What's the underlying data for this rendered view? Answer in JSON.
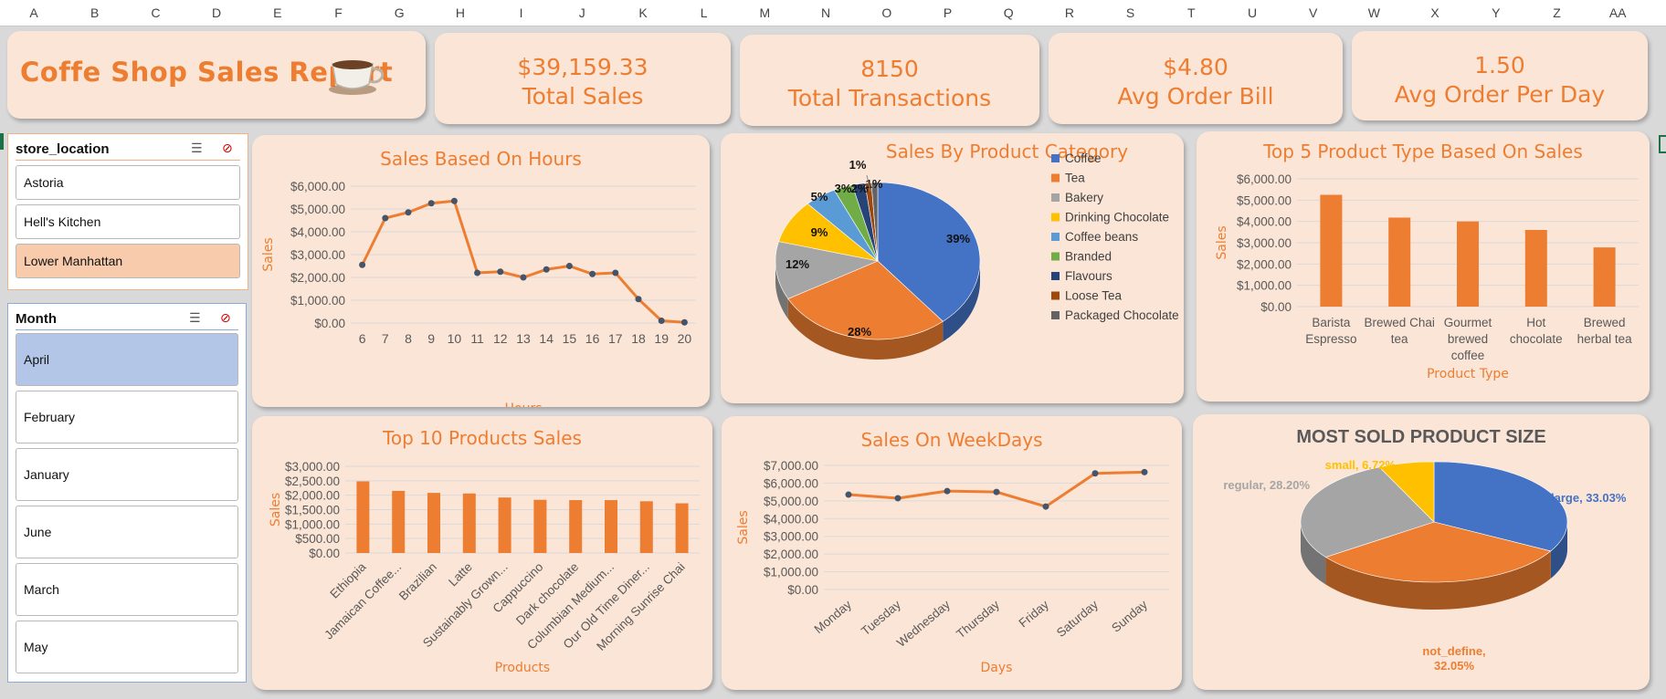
{
  "columns": [
    "A",
    "B",
    "C",
    "D",
    "E",
    "F",
    "G",
    "H",
    "I",
    "J",
    "K",
    "L",
    "M",
    "N",
    "O",
    "P",
    "Q",
    "R",
    "S",
    "T",
    "U",
    "V",
    "W",
    "X",
    "Y",
    "Z",
    "AA"
  ],
  "header": {
    "title": "Coffe Shop Sales Report",
    "icon": "coffee-cup-icon"
  },
  "kpis": [
    {
      "value": "$39,159.33",
      "label": "Total Sales"
    },
    {
      "value": "8150",
      "label": "Total Transactions"
    },
    {
      "value": "$4.80",
      "label": "Avg Order Bill"
    },
    {
      "value": "1.50",
      "label": "Avg Order Per Day"
    }
  ],
  "slicers": {
    "location": {
      "title": "store_location",
      "items": [
        "Astoria",
        "Hell's Kitchen",
        "Lower Manhattan"
      ],
      "selected": "Lower Manhattan"
    },
    "month": {
      "title": "Month",
      "items": [
        "April",
        "February",
        "January",
        "June",
        "March",
        "May"
      ],
      "selected": "April"
    }
  },
  "colors": {
    "accent": "#ed7d31",
    "card": "#fbe5d6",
    "slicer_selected_location": "#f8cbad",
    "slicer_selected_month": "#b4c6e7"
  },
  "chart_data": [
    {
      "id": "hours",
      "type": "line",
      "title": "Sales Based On Hours",
      "xlabel": "Hours",
      "ylabel": "Sales",
      "x": [
        "6",
        "7",
        "8",
        "9",
        "10",
        "11",
        "12",
        "13",
        "14",
        "15",
        "16",
        "17",
        "18",
        "19",
        "20"
      ],
      "values": [
        2550,
        4600,
        4850,
        5250,
        5350,
        2200,
        2250,
        2000,
        2350,
        2500,
        2150,
        2200,
        1050,
        100,
        30
      ],
      "ylim": [
        0,
        6000
      ],
      "yticks": [
        "$0.00",
        "$1,000.00",
        "$2,000.00",
        "$3,000.00",
        "$4,000.00",
        "$5,000.00",
        "$6,000.00"
      ],
      "grid": true
    },
    {
      "id": "category",
      "type": "pie",
      "title": "Sales By Product Category",
      "labels": [
        "Coffee",
        "Tea",
        "Bakery",
        "Drinking Chocolate",
        "Coffee beans",
        "Branded",
        "Flavours",
        "Loose Tea",
        "Packaged Chocolate"
      ],
      "values": [
        39,
        28,
        12,
        9,
        5,
        3,
        2,
        1,
        1
      ],
      "data_labels": [
        "39%",
        "28%",
        "12%",
        "9%",
        "5%",
        "3%",
        "2%",
        "1%",
        "1%"
      ],
      "colors": [
        "#4472c4",
        "#ed7d31",
        "#a5a5a5",
        "#ffc000",
        "#5b9bd5",
        "#70ad47",
        "#264478",
        "#9e480e",
        "#636363"
      ],
      "legend": "right"
    },
    {
      "id": "top5",
      "type": "bar",
      "title": "Top 5 Product Type Based On Sales",
      "xlabel": "Product Type",
      "ylabel": "Sales",
      "categories": [
        "Barista Espresso",
        "Brewed Chai tea",
        "Gourmet brewed coffee",
        "Hot chocolate",
        "Brewed herbal tea"
      ],
      "values": [
        5250,
        4180,
        4000,
        3600,
        2780
      ],
      "ylim": [
        0,
        6000
      ],
      "yticks": [
        "$0.00",
        "$1,000.00",
        "$2,000.00",
        "$3,000.00",
        "$4,000.00",
        "$5,000.00",
        "$6,000.00"
      ]
    },
    {
      "id": "top10",
      "type": "bar",
      "title": "Top 10 Products Sales",
      "xlabel": "Products",
      "ylabel": "Sales",
      "categories": [
        "Ethiopia",
        "Jamaican Coffee...",
        "Brazilian",
        "Latte",
        "Sustainably Grown...",
        "Cappuccino",
        "Dark chocolate",
        "Columbian Medium...",
        "Our Old Time Diner...",
        "Morning Sunrise Chai"
      ],
      "values": [
        2480,
        2150,
        2080,
        2060,
        1920,
        1840,
        1830,
        1830,
        1790,
        1720
      ],
      "ylim": [
        0,
        3000
      ],
      "yticks": [
        "$0.00",
        "$500.00",
        "$1,000.00",
        "$1,500.00",
        "$2,000.00",
        "$2,500.00",
        "$3,000.00"
      ]
    },
    {
      "id": "weekdays",
      "type": "line",
      "title": "Sales On WeekDays",
      "xlabel": "Days",
      "ylabel": "Sales",
      "x": [
        "Monday",
        "Tuesday",
        "Wednesday",
        "Thursday",
        "Friday",
        "Saturday",
        "Sunday"
      ],
      "values": [
        5350,
        5150,
        5550,
        5500,
        4680,
        6550,
        6620
      ],
      "ylim": [
        0,
        7000
      ],
      "yticks": [
        "$0.00",
        "$1,000.00",
        "$2,000.00",
        "$3,000.00",
        "$4,000.00",
        "$5,000.00",
        "$6,000.00",
        "$7,000.00"
      ]
    },
    {
      "id": "size",
      "type": "pie",
      "title": "MOST SOLD PRODUCT SIZE",
      "labels": [
        "large",
        "not_define",
        "regular",
        "small"
      ],
      "values": [
        33.03,
        32.05,
        28.2,
        6.72
      ],
      "data_labels": [
        "large, 33.03%",
        "not_define, 32.05%",
        "regular, 28.20%",
        "small, 6.72%"
      ],
      "colors": [
        "#4472c4",
        "#ed7d31",
        "#a5a5a5",
        "#ffc000"
      ]
    }
  ]
}
